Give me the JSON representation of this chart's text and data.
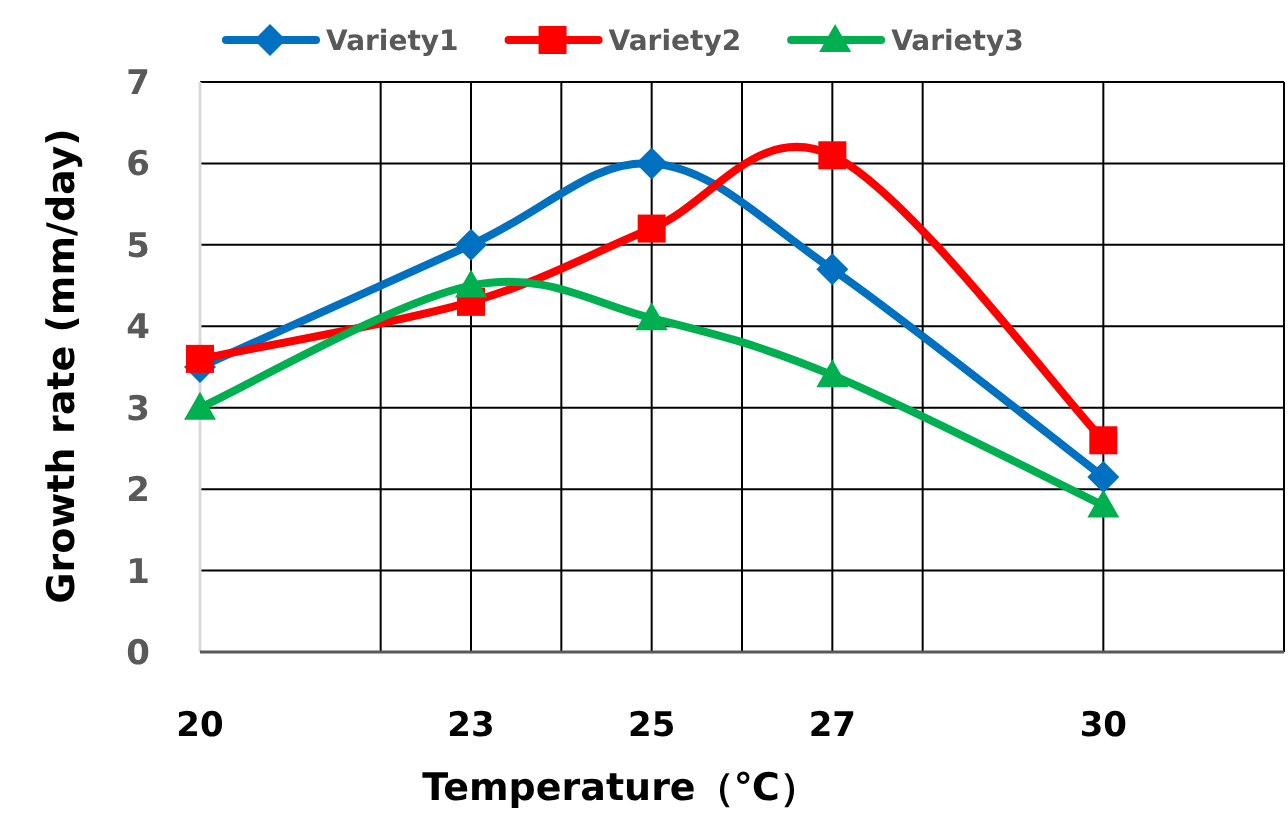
{
  "chart_data": {
    "type": "line",
    "xlabel": "Temperature（℃）",
    "ylabel": "Growth rate (mm/day)",
    "x": [
      20,
      23,
      25,
      27,
      30
    ],
    "series": [
      {
        "name": "Variety1",
        "color": "#0070c0",
        "marker": "diamond",
        "values": [
          3.5,
          5.0,
          6.0,
          4.7,
          2.15
        ]
      },
      {
        "name": "Variety2",
        "color": "#ff0000",
        "marker": "square",
        "values": [
          3.6,
          4.3,
          5.2,
          6.1,
          2.6
        ]
      },
      {
        "name": "Variety3",
        "color": "#00b050",
        "marker": "triangle",
        "values": [
          3.0,
          4.5,
          4.1,
          3.4,
          1.8
        ]
      }
    ],
    "xlim": [
      20,
      32
    ],
    "xticks": [
      20,
      {
        "value": 22,
        "label": null
      },
      23,
      {
        "value": 24,
        "label": null
      },
      25,
      {
        "value": 26,
        "label": null
      },
      27,
      {
        "value": 28,
        "label": null
      },
      30,
      {
        "value": 32,
        "label": null
      }
    ],
    "ylim": [
      0,
      7
    ],
    "yticks": [
      0,
      1,
      2,
      3,
      4,
      5,
      6,
      7
    ],
    "grid": true,
    "legend": "top",
    "line_style": "solid"
  }
}
